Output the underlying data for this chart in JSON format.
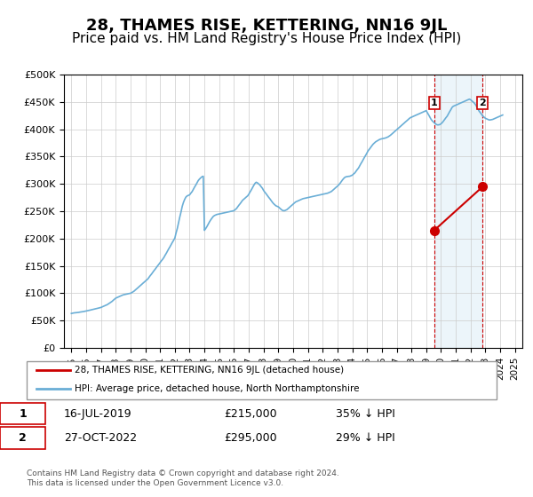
{
  "title": "28, THAMES RISE, KETTERING, NN16 9JL",
  "subtitle": "Price paid vs. HM Land Registry's House Price Index (HPI)",
  "title_fontsize": 13,
  "subtitle_fontsize": 11,
  "hpi_color": "#6aaed6",
  "price_color": "#cc0000",
  "background_color": "#dce9f5",
  "plot_bg": "#ffffff",
  "ylabel": "",
  "xlabel": "",
  "ylim": [
    0,
    500000
  ],
  "yticks": [
    0,
    50000,
    100000,
    150000,
    200000,
    250000,
    300000,
    350000,
    400000,
    450000,
    500000
  ],
  "ytick_labels": [
    "£0",
    "£50K",
    "£100K",
    "£150K",
    "£200K",
    "£250K",
    "£300K",
    "£350K",
    "£400K",
    "£450K",
    "£500K"
  ],
  "transaction1_date": "16-JUL-2019",
  "transaction1_price": 215000,
  "transaction1_pct": "35% ↓ HPI",
  "transaction2_date": "27-OCT-2022",
  "transaction2_price": 295000,
  "transaction2_pct": "29% ↓ HPI",
  "legend_label_red": "28, THAMES RISE, KETTERING, NN16 9JL (detached house)",
  "legend_label_blue": "HPI: Average price, detached house, North Northamptonshire",
  "footnote": "Contains HM Land Registry data © Crown copyright and database right 2024.\nThis data is licensed under the Open Government Licence v3.0.",
  "hpi_years": [
    1995.0,
    1995.08,
    1995.17,
    1995.25,
    1995.33,
    1995.42,
    1995.5,
    1995.58,
    1995.67,
    1995.75,
    1995.83,
    1995.92,
    1996.0,
    1996.08,
    1996.17,
    1996.25,
    1996.33,
    1996.42,
    1996.5,
    1996.58,
    1996.67,
    1996.75,
    1996.83,
    1996.92,
    1997.0,
    1997.08,
    1997.17,
    1997.25,
    1997.33,
    1997.42,
    1997.5,
    1997.58,
    1997.67,
    1997.75,
    1997.83,
    1997.92,
    1998.0,
    1998.08,
    1998.17,
    1998.25,
    1998.33,
    1998.42,
    1998.5,
    1998.58,
    1998.67,
    1998.75,
    1998.83,
    1998.92,
    1999.0,
    1999.08,
    1999.17,
    1999.25,
    1999.33,
    1999.42,
    1999.5,
    1999.58,
    1999.67,
    1999.75,
    1999.83,
    1999.92,
    2000.0,
    2000.08,
    2000.17,
    2000.25,
    2000.33,
    2000.42,
    2000.5,
    2000.58,
    2000.67,
    2000.75,
    2000.83,
    2000.92,
    2001.0,
    2001.08,
    2001.17,
    2001.25,
    2001.33,
    2001.42,
    2001.5,
    2001.58,
    2001.67,
    2001.75,
    2001.83,
    2001.92,
    2002.0,
    2002.08,
    2002.17,
    2002.25,
    2002.33,
    2002.42,
    2002.5,
    2002.58,
    2002.67,
    2002.75,
    2002.83,
    2002.92,
    2003.0,
    2003.08,
    2003.17,
    2003.25,
    2003.33,
    2003.42,
    2003.5,
    2003.58,
    2003.67,
    2003.75,
    2003.83,
    2003.92,
    2004.0,
    2004.08,
    2004.17,
    2004.25,
    2004.33,
    2004.42,
    2004.5,
    2004.58,
    2004.67,
    2004.75,
    2004.83,
    2004.92,
    2005.0,
    2005.08,
    2005.17,
    2005.25,
    2005.33,
    2005.42,
    2005.5,
    2005.58,
    2005.67,
    2005.75,
    2005.83,
    2005.92,
    2006.0,
    2006.08,
    2006.17,
    2006.25,
    2006.33,
    2006.42,
    2006.5,
    2006.58,
    2006.67,
    2006.75,
    2006.83,
    2006.92,
    2007.0,
    2007.08,
    2007.17,
    2007.25,
    2007.33,
    2007.42,
    2007.5,
    2007.58,
    2007.67,
    2007.75,
    2007.83,
    2007.92,
    2008.0,
    2008.08,
    2008.17,
    2008.25,
    2008.33,
    2008.42,
    2008.5,
    2008.58,
    2008.67,
    2008.75,
    2008.83,
    2008.92,
    2009.0,
    2009.08,
    2009.17,
    2009.25,
    2009.33,
    2009.42,
    2009.5,
    2009.58,
    2009.67,
    2009.75,
    2009.83,
    2009.92,
    2010.0,
    2010.08,
    2010.17,
    2010.25,
    2010.33,
    2010.42,
    2010.5,
    2010.58,
    2010.67,
    2010.75,
    2010.83,
    2010.92,
    2011.0,
    2011.08,
    2011.17,
    2011.25,
    2011.33,
    2011.42,
    2011.5,
    2011.58,
    2011.67,
    2011.75,
    2011.83,
    2011.92,
    2012.0,
    2012.08,
    2012.17,
    2012.25,
    2012.33,
    2012.42,
    2012.5,
    2012.58,
    2012.67,
    2012.75,
    2012.83,
    2012.92,
    2013.0,
    2013.08,
    2013.17,
    2013.25,
    2013.33,
    2013.42,
    2013.5,
    2013.58,
    2013.67,
    2013.75,
    2013.83,
    2013.92,
    2014.0,
    2014.08,
    2014.17,
    2014.25,
    2014.33,
    2014.42,
    2014.5,
    2014.58,
    2014.67,
    2014.75,
    2014.83,
    2014.92,
    2015.0,
    2015.08,
    2015.17,
    2015.25,
    2015.33,
    2015.42,
    2015.5,
    2015.58,
    2015.67,
    2015.75,
    2015.83,
    2015.92,
    2016.0,
    2016.08,
    2016.17,
    2016.25,
    2016.33,
    2016.42,
    2016.5,
    2016.58,
    2016.67,
    2016.75,
    2016.83,
    2016.92,
    2017.0,
    2017.08,
    2017.17,
    2017.25,
    2017.33,
    2017.42,
    2017.5,
    2017.58,
    2017.67,
    2017.75,
    2017.83,
    2017.92,
    2018.0,
    2018.08,
    2018.17,
    2018.25,
    2018.33,
    2018.42,
    2018.5,
    2018.58,
    2018.67,
    2018.75,
    2018.83,
    2018.92,
    2019.0,
    2019.08,
    2019.17,
    2019.25,
    2019.33,
    2019.42,
    2019.5,
    2019.58,
    2019.67,
    2019.75,
    2019.83,
    2019.92,
    2020.0,
    2020.08,
    2020.17,
    2020.25,
    2020.33,
    2020.42,
    2020.5,
    2020.58,
    2020.67,
    2020.75,
    2020.83,
    2020.92,
    2021.0,
    2021.08,
    2021.17,
    2021.25,
    2021.33,
    2021.42,
    2021.5,
    2021.58,
    2021.67,
    2021.75,
    2021.83,
    2021.92,
    2022.0,
    2022.08,
    2022.17,
    2022.25,
    2022.33,
    2022.42,
    2022.5,
    2022.58,
    2022.67,
    2022.75,
    2022.83,
    2022.92,
    2023.0,
    2023.08,
    2023.17,
    2023.25,
    2023.33,
    2023.42,
    2023.5,
    2023.58,
    2023.67,
    2023.75,
    2023.83,
    2023.92,
    2024.0,
    2024.08,
    2024.17
  ],
  "hpi_values": [
    63000,
    63500,
    64000,
    64200,
    64500,
    64800,
    65000,
    65500,
    65800,
    66000,
    66500,
    67000,
    67500,
    68000,
    68500,
    69000,
    69500,
    70000,
    70500,
    71000,
    71500,
    72000,
    72800,
    73500,
    74000,
    75000,
    76000,
    77000,
    78000,
    79000,
    80500,
    82000,
    83500,
    85000,
    87000,
    89000,
    91000,
    92000,
    93000,
    94000,
    95000,
    96000,
    97000,
    97500,
    98000,
    98500,
    99000,
    99500,
    100000,
    101000,
    102500,
    104000,
    106000,
    108000,
    110000,
    112000,
    114000,
    116000,
    118000,
    120000,
    122000,
    124000,
    126000,
    129000,
    132000,
    135000,
    138000,
    141000,
    144000,
    147000,
    150000,
    153000,
    156000,
    159000,
    162000,
    165000,
    169000,
    173000,
    177000,
    181000,
    185000,
    189000,
    193000,
    197000,
    201000,
    210000,
    219000,
    229000,
    239000,
    249000,
    259000,
    266000,
    272000,
    276000,
    278000,
    279000,
    280000,
    283000,
    286000,
    290000,
    294000,
    298000,
    302000,
    306000,
    309000,
    311000,
    313000,
    314000,
    215000,
    218000,
    222000,
    226000,
    230000,
    234000,
    237000,
    240000,
    242000,
    243000,
    244000,
    244500,
    245000,
    245500,
    246000,
    246500,
    247000,
    247500,
    248000,
    248500,
    249000,
    249500,
    250000,
    250500,
    251000,
    253000,
    255000,
    258000,
    261000,
    264000,
    267000,
    270000,
    272000,
    274000,
    276000,
    278000,
    281000,
    285000,
    289000,
    293000,
    297000,
    301000,
    303000,
    302000,
    300000,
    298000,
    295000,
    292000,
    288000,
    285000,
    282000,
    279000,
    276000,
    273000,
    270000,
    267000,
    264000,
    262000,
    260000,
    259000,
    258000,
    256000,
    254000,
    252000,
    251000,
    251000,
    252000,
    253000,
    255000,
    257000,
    259000,
    261000,
    263000,
    265000,
    267000,
    268000,
    269000,
    270000,
    271000,
    272000,
    273000,
    273500,
    274000,
    274500,
    275000,
    275500,
    276000,
    276500,
    277000,
    277500,
    278000,
    278500,
    279000,
    279500,
    280000,
    280500,
    281000,
    281500,
    282000,
    282500,
    283000,
    284000,
    285000,
    286000,
    288000,
    290000,
    292000,
    294000,
    296000,
    298000,
    301000,
    304000,
    307000,
    310000,
    312000,
    313000,
    313500,
    313800,
    314000,
    315000,
    316000,
    318000,
    320000,
    323000,
    326000,
    329000,
    333000,
    337000,
    341000,
    345000,
    349000,
    353000,
    357000,
    361000,
    364000,
    367000,
    370000,
    373000,
    375000,
    377000,
    378500,
    380000,
    381000,
    382000,
    382500,
    383000,
    383500,
    384000,
    385000,
    386000,
    387500,
    389000,
    391000,
    393000,
    395000,
    397000,
    399000,
    401000,
    403000,
    405000,
    407000,
    409000,
    411000,
    413000,
    415000,
    417000,
    419000,
    421000,
    422000,
    423000,
    424000,
    425000,
    426000,
    427000,
    428000,
    429000,
    430000,
    431000,
    432000,
    433000,
    434000,
    430000,
    426000,
    422000,
    418000,
    415000,
    413000,
    411000,
    409000,
    408000,
    408000,
    408500,
    410000,
    412000,
    415000,
    418000,
    421000,
    424000,
    428000,
    432000,
    436000,
    440000,
    442000,
    443000,
    444000,
    445000,
    446000,
    447000,
    448000,
    449000,
    450000,
    451000,
    452000,
    453000,
    454000,
    455000,
    454000,
    452000,
    450000,
    448000,
    445000,
    441000,
    437000,
    433000,
    430000,
    427000,
    424000,
    422000,
    420000,
    419000,
    418000,
    417000,
    417000,
    417500,
    418000,
    419000,
    420000,
    421000,
    422000,
    423000,
    424000,
    425000,
    426000,
    427000,
    428000,
    429000,
    430000,
    431000,
    432000,
    433000,
    434000,
    435000,
    436000,
    437000,
    438000
  ],
  "price_years": [
    2019.54,
    2022.82
  ],
  "price_values": [
    215000,
    295000
  ],
  "transaction1_year": 2019.54,
  "transaction2_year": 2022.82,
  "xtick_years": [
    1995,
    1996,
    1997,
    1998,
    1999,
    2000,
    2001,
    2002,
    2003,
    2004,
    2005,
    2006,
    2007,
    2008,
    2009,
    2010,
    2011,
    2012,
    2013,
    2014,
    2015,
    2016,
    2017,
    2018,
    2019,
    2020,
    2021,
    2022,
    2023,
    2024,
    2025
  ],
  "xlim": [
    1994.5,
    2025.5
  ]
}
